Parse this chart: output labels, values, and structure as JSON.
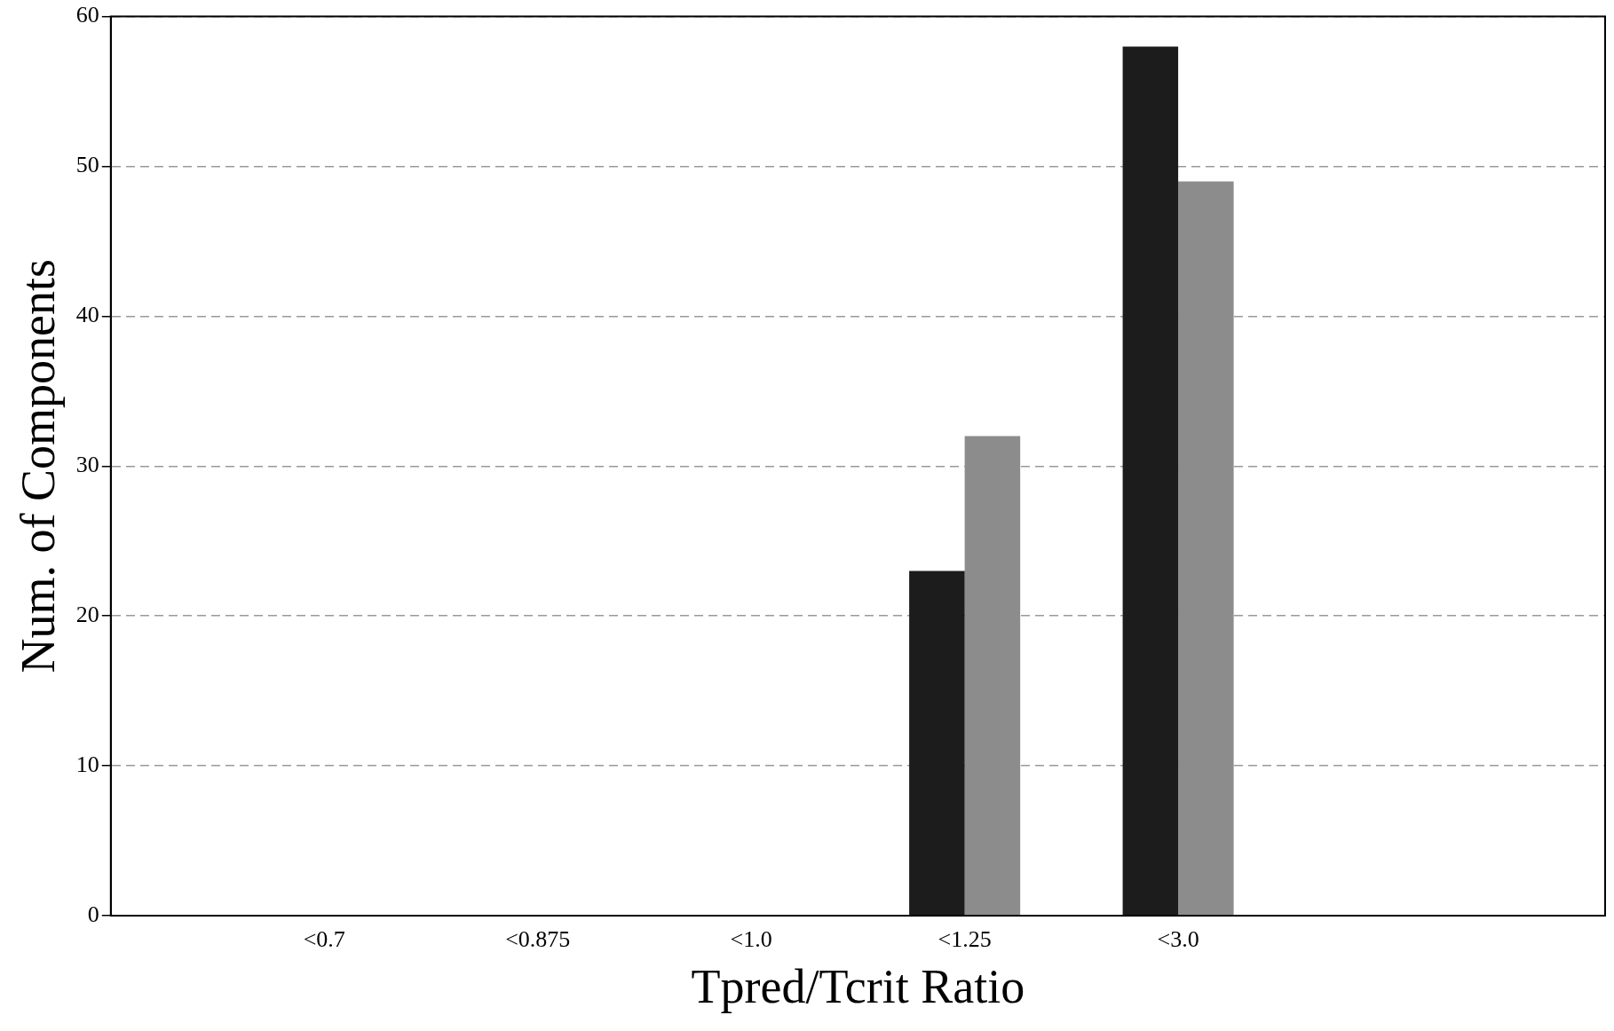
{
  "chart_data": {
    "type": "bar",
    "xlabel": "Tpred/Tcrit Ratio",
    "ylabel": "Num. of Components",
    "categories": [
      null,
      "<0.7",
      "<0.875",
      "<1.0",
      "<1.25",
      "<3.0",
      null,
      null
    ],
    "series": [
      {
        "color": "#1c1c1c",
        "values": [
          null,
          0,
          0,
          0,
          23,
          58,
          null,
          null
        ]
      },
      {
        "color": "#8c8c8c",
        "values": [
          null,
          0,
          0,
          0,
          32,
          49,
          null,
          null
        ]
      }
    ],
    "ylim": [
      0,
      60
    ],
    "yticks": [
      0,
      10,
      20,
      30,
      40,
      50,
      60
    ],
    "grid": "y"
  }
}
